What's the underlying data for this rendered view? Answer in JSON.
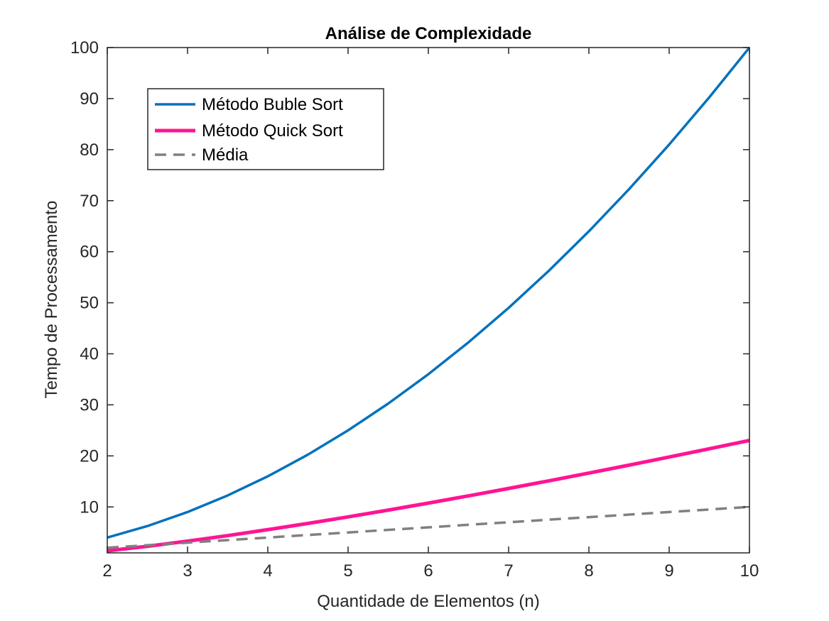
{
  "chart_data": {
    "type": "line",
    "title": "Análise de Complexidade",
    "xlabel": "Quantidade de Elementos (n)",
    "ylabel": "Tempo de Processamento",
    "xlim": [
      2,
      10
    ],
    "ylim": [
      1,
      100
    ],
    "xticks": [
      2,
      3,
      4,
      5,
      6,
      7,
      8,
      9,
      10
    ],
    "yticks": [
      10,
      20,
      30,
      40,
      50,
      60,
      70,
      80,
      90,
      100
    ],
    "grid": false,
    "legend_position": "top-left",
    "series": [
      {
        "name": "Método Buble Sort",
        "color": "#0072BD",
        "style": "solid",
        "x": [
          2,
          2.5,
          3,
          3.5,
          4,
          4.5,
          5,
          5.5,
          6,
          6.5,
          7,
          7.5,
          8,
          8.5,
          9,
          9.5,
          10
        ],
        "y": [
          4,
          6.25,
          9,
          12.25,
          16,
          20.25,
          25,
          30.25,
          36,
          42.25,
          49,
          56.25,
          64,
          72.25,
          81,
          90.25,
          100
        ]
      },
      {
        "name": "Método Quick Sort",
        "color": "#FF1493",
        "style": "solid",
        "x": [
          2,
          2.5,
          3,
          3.5,
          4,
          4.5,
          5,
          5.5,
          6,
          6.5,
          7,
          7.5,
          8,
          8.5,
          9,
          9.5,
          10
        ],
        "y": [
          1.39,
          2.29,
          3.3,
          4.38,
          5.55,
          6.77,
          8.05,
          9.38,
          10.75,
          12.17,
          13.62,
          15.11,
          16.64,
          18.19,
          19.78,
          21.39,
          23.03
        ]
      },
      {
        "name": "Média",
        "color": "#808080",
        "style": "dashed",
        "x": [
          2,
          10
        ],
        "y": [
          2,
          10
        ]
      }
    ]
  }
}
